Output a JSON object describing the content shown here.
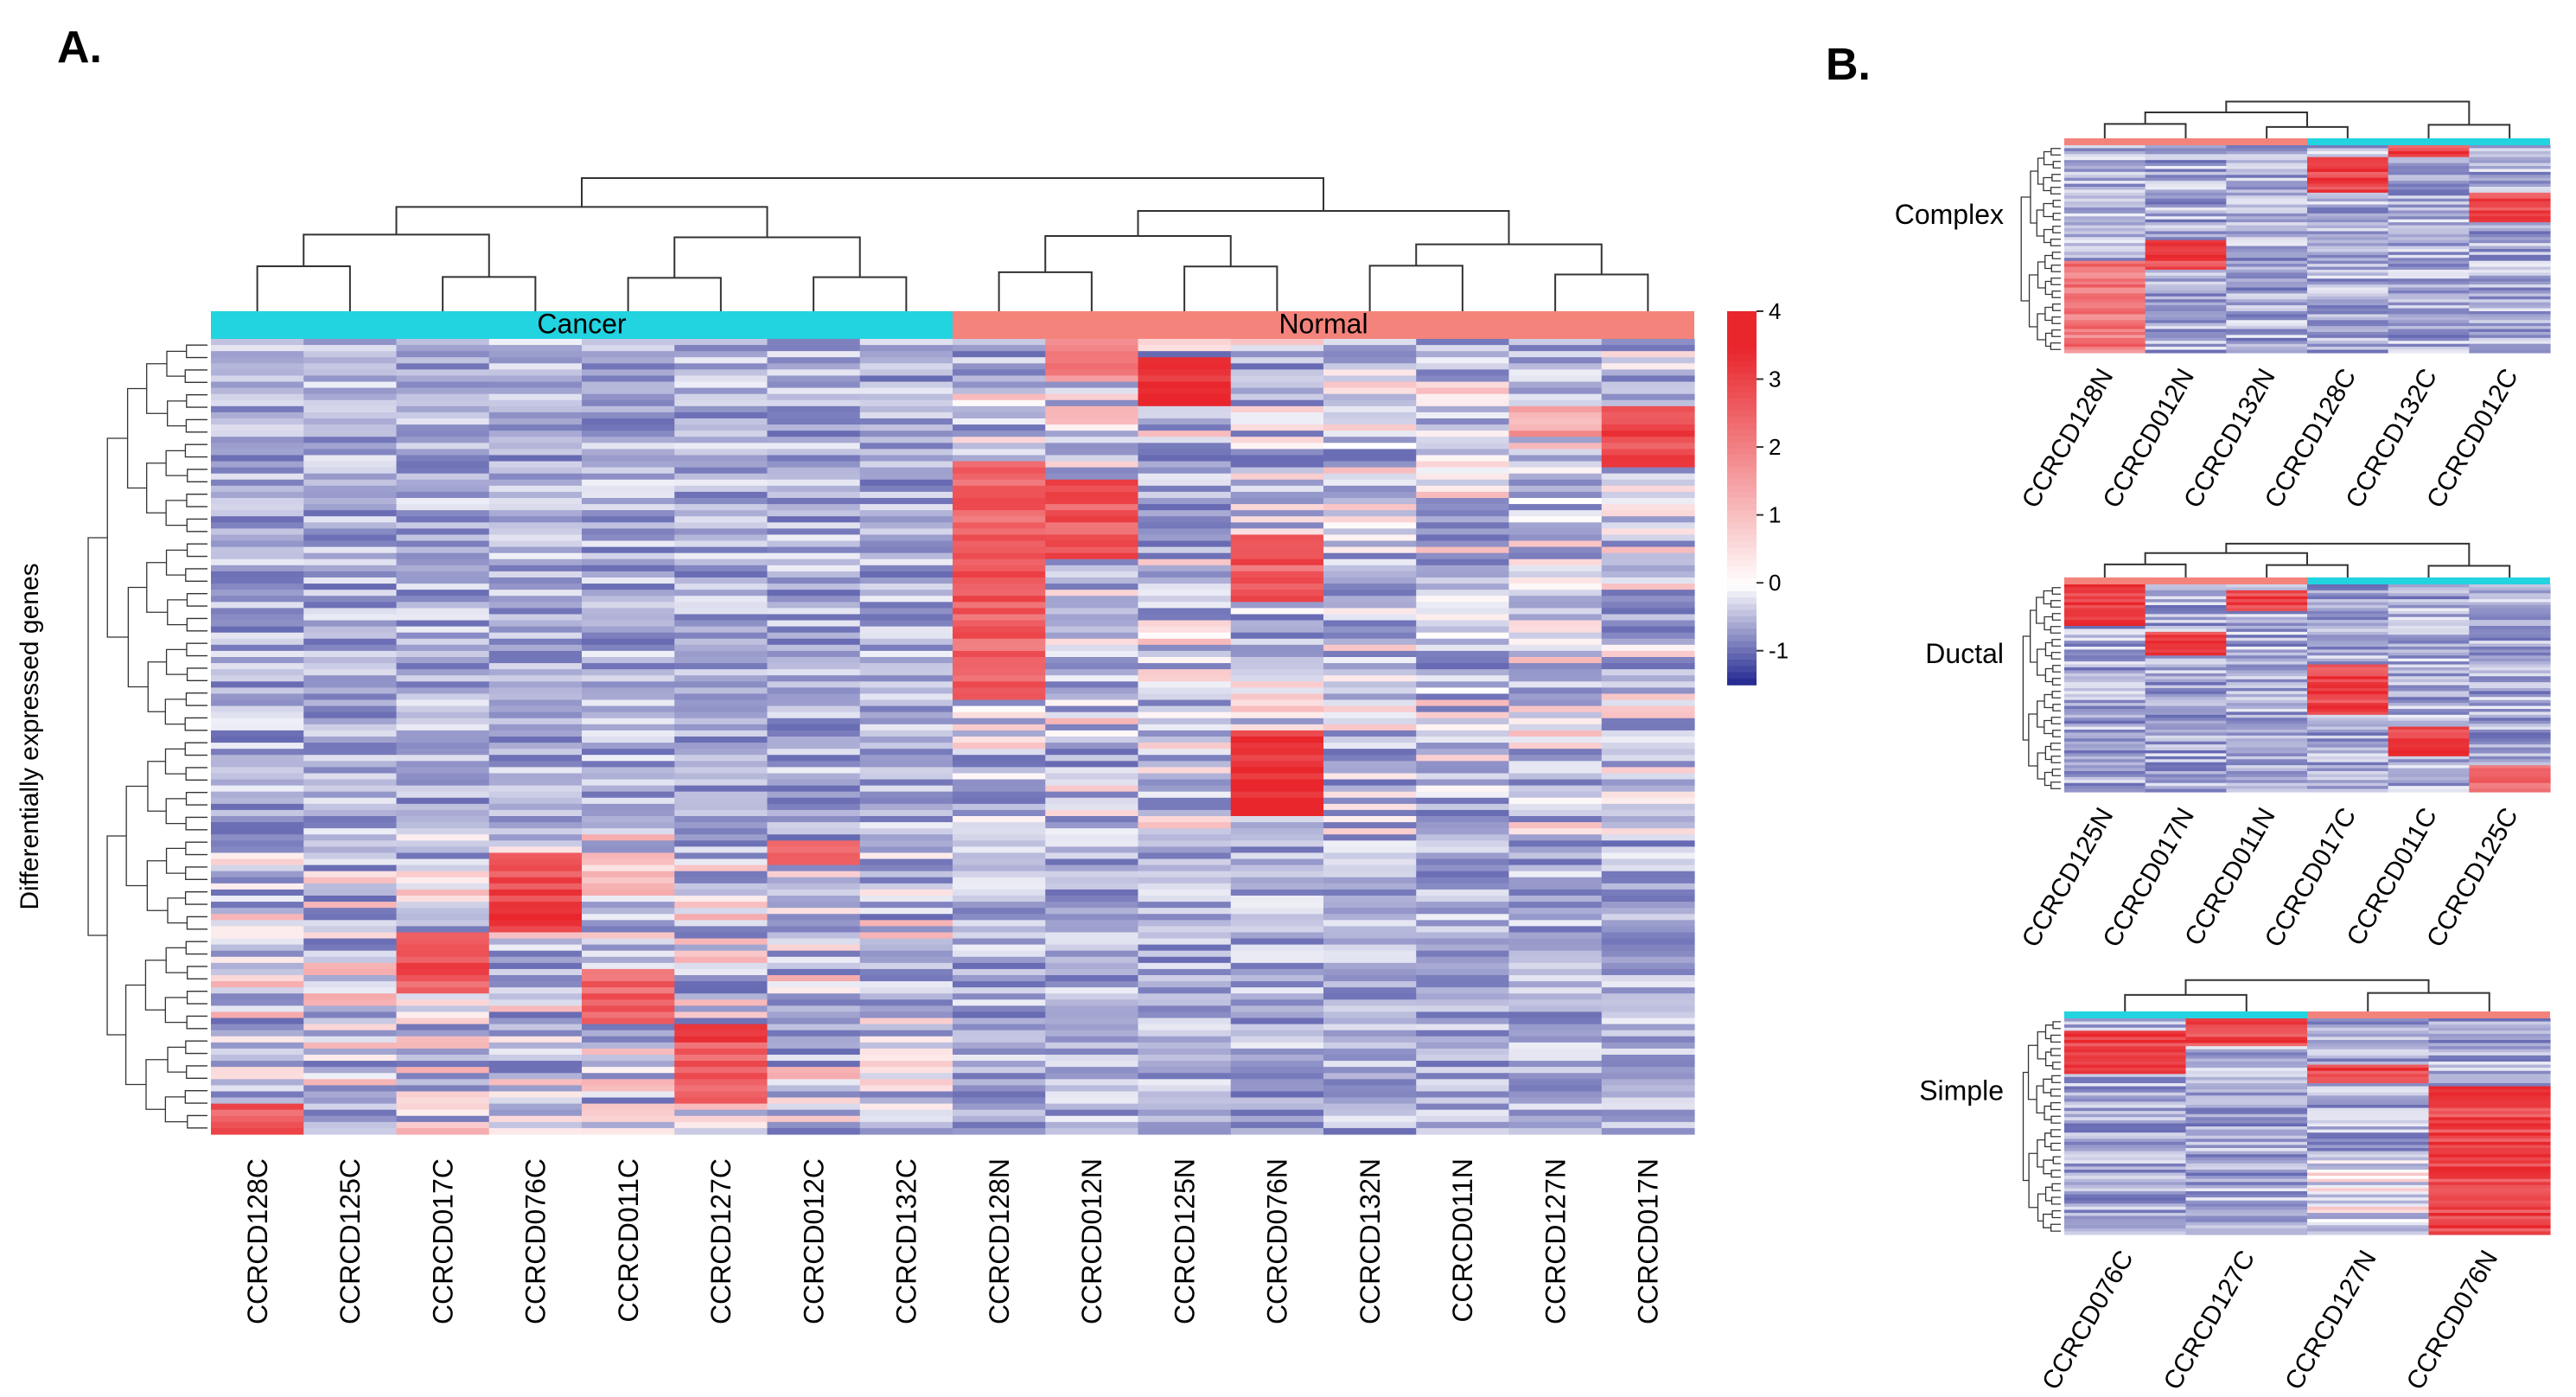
{
  "figure": {
    "panel_a_label": "A.",
    "panel_b_label": "B."
  },
  "chart_data": [
    {
      "type": "heatmap",
      "panel": "A.",
      "title": "",
      "ylabel": "Differentially expressed genes",
      "xlabel": "",
      "columns": [
        "CCRCD128C",
        "CCRCD125C",
        "CCRCD017C",
        "CCRCD076C",
        "CCRCD011C",
        "CCRCD127C",
        "CCRCD012C",
        "CCRCD132C",
        "CCRCD128N",
        "CCRCD012N",
        "CCRCD125N",
        "CCRCD076N",
        "CCRCD132N",
        "CCRCD011N",
        "CCRCD127N",
        "CCRCD017N"
      ],
      "groups": [
        {
          "name": "Cancer",
          "count": 8,
          "color": "#22d3e0"
        },
        {
          "name": "Normal",
          "count": 8,
          "color": "#f4837b"
        }
      ],
      "colorbar": {
        "ticks": [
          4,
          3,
          2,
          1,
          0,
          -1
        ],
        "min": -1.5,
        "max": 4,
        "colors": {
          "high": "#e8262c",
          "mid": "#ffffff",
          "low": "#1a1f8c"
        }
      },
      "rows_estimated": 130,
      "blocks": [
        {
          "cols": [
            8,
            9,
            10,
            11,
            12,
            13,
            14,
            15
          ],
          "rows": [
            0.0,
            0.62
          ],
          "pattern": "Normal samples show moderately higher expression, strongest in CCRCD128N, CCRCD012N, CCRCD076N"
        },
        {
          "cols": [
            0,
            1,
            2,
            3,
            4,
            5,
            6,
            7
          ],
          "rows": [
            0.62,
            1.0
          ],
          "pattern": "Cancer samples show higher expression, strongest in CCRCD076C, CCRCD017C, CCRCD127C, CCRCD011C"
        }
      ]
    },
    {
      "type": "heatmap",
      "panel": "B.",
      "title": "Complex",
      "columns": [
        "CCRCD128N",
        "CCRCD012N",
        "CCRCD132N",
        "CCRCD128C",
        "CCRCD132C",
        "CCRCD012C"
      ],
      "groups": [
        {
          "name": "Normal",
          "count": 3,
          "color": "#f4837b"
        },
        {
          "name": "Cancer",
          "count": 3,
          "color": "#22d3e0"
        }
      ]
    },
    {
      "type": "heatmap",
      "panel": "B.",
      "title": "Ductal",
      "columns": [
        "CCRCD125N",
        "CCRCD017N",
        "CCRCD011N",
        "CCRCD017C",
        "CCRCD011C",
        "CCRCD125C"
      ],
      "groups": [
        {
          "name": "Normal",
          "count": 3,
          "color": "#f4837b"
        },
        {
          "name": "Cancer",
          "count": 3,
          "color": "#22d3e0"
        }
      ]
    },
    {
      "type": "heatmap",
      "panel": "B.",
      "title": "Simple",
      "columns": [
        "CCRCD076C",
        "CCRCD127C",
        "CCRCD127N",
        "CCRCD076N"
      ],
      "groups": [
        {
          "name": "Cancer",
          "count": 2,
          "color": "#22d3e0"
        },
        {
          "name": "Normal",
          "count": 2,
          "color": "#f4837b"
        }
      ]
    }
  ]
}
